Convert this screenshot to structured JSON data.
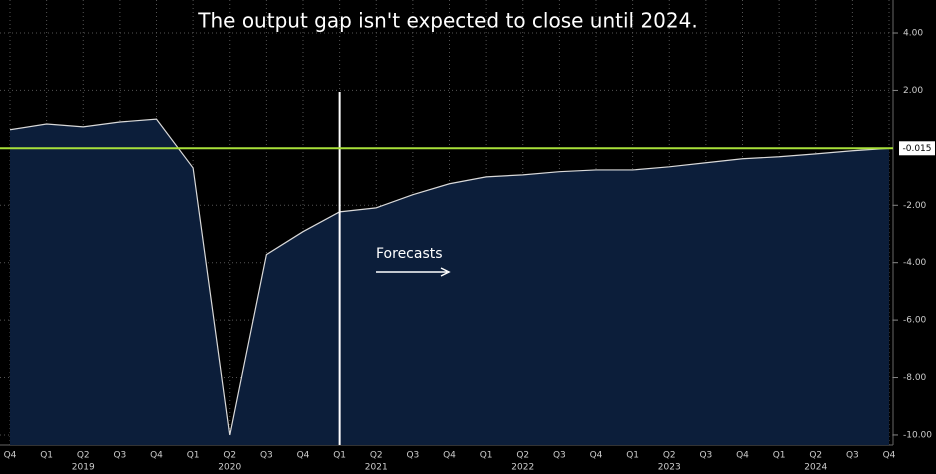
{
  "chart_data": {
    "type": "area",
    "title": "The output gap isn't expected to close until 2024.",
    "annotation": "Forecasts",
    "categories": [
      "Q4",
      "Q1",
      "Q2",
      "Q3",
      "Q4",
      "Q1",
      "Q2",
      "Q3",
      "Q4",
      "Q1",
      "Q2",
      "Q3",
      "Q4",
      "Q1",
      "Q2",
      "Q3",
      "Q4",
      "Q1",
      "Q2",
      "Q3",
      "Q4",
      "Q1",
      "Q2",
      "Q3",
      "Q4"
    ],
    "years": [
      "2019",
      "2020",
      "2021",
      "2022",
      "2023",
      "2024"
    ],
    "series": [
      {
        "name": "Output gap",
        "color": "#d9d9d9",
        "fill": "#0c1e3a",
        "values": [
          0.63,
          0.83,
          0.73,
          0.9,
          1.0,
          -0.7,
          -10.0,
          -3.72,
          -2.92,
          -2.23,
          -2.09,
          -1.63,
          -1.25,
          -1.01,
          -0.94,
          -0.83,
          -0.77,
          -0.77,
          -0.66,
          -0.52,
          -0.38,
          -0.31,
          -0.21,
          -0.1,
          -0.015
        ]
      }
    ],
    "reference_line": {
      "value": -0.015,
      "color": "#a8e03a"
    },
    "ylim": [
      -10.35,
      5.15
    ],
    "yticks": [
      {
        "value": 4,
        "label": "4.00"
      },
      {
        "value": 2,
        "label": "2.00"
      },
      {
        "value": -2,
        "label": "-2.00"
      },
      {
        "value": -4,
        "label": "-4.00"
      },
      {
        "value": -6,
        "label": "-6.00"
      },
      {
        "value": -8,
        "label": "-8.00"
      },
      {
        "value": -10,
        "label": "-10.00"
      }
    ],
    "grid": true
  }
}
